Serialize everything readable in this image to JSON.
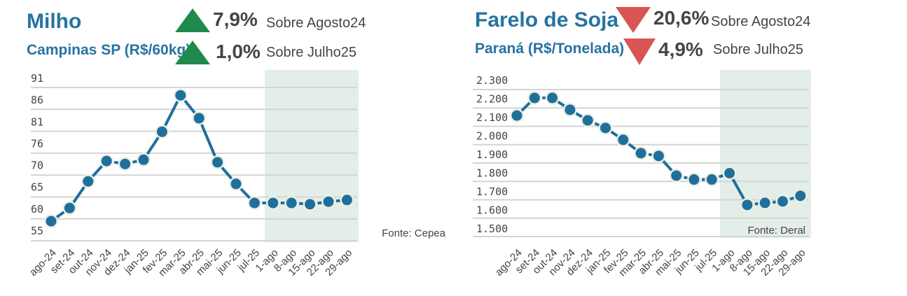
{
  "left_header": {
    "title": "Milho",
    "subtitle": "Campinas SP (R$/60kg)",
    "change_year": {
      "value": "7,9%",
      "label": "Sobre Agosto24",
      "direction": "up",
      "icon": "triangle-up-icon"
    },
    "change_month": {
      "value": "1,0%",
      "label": "Sobre Julho25",
      "direction": "up",
      "icon": "triangle-up-icon"
    }
  },
  "right_header": {
    "title": "Farelo de Soja",
    "subtitle": "Paraná (R$/Tonelada)",
    "change_year": {
      "value": "20,6%",
      "label": "Sobre Agosto24",
      "direction": "down",
      "icon": "triangle-down-icon"
    },
    "change_month": {
      "value": "4,9%",
      "label": "Sobre Julho25",
      "direction": "down",
      "icon": "triangle-down-icon"
    }
  },
  "colors": {
    "title": "#2674a1",
    "line": "#1f6f9c",
    "up": "#1e8a4c",
    "down": "#d95454",
    "highlight": "#e3eee8"
  },
  "chart_data": [
    {
      "type": "line",
      "title": "Milho",
      "source": "Fonte: Cepea",
      "categories": [
        "ago-24",
        "set-24",
        "out-24",
        "nov-24",
        "dez-24",
        "jan-25",
        "fev-25",
        "mar-25",
        "abr-25",
        "mai-25",
        "jun-25",
        "jul-25",
        "1-ago",
        "8-ago",
        "15-ago",
        "22-ago",
        "29-ago"
      ],
      "values": [
        57.3,
        60.4,
        66.7,
        71.5,
        70.8,
        71.8,
        78.4,
        87.0,
        81.6,
        71.2,
        66.1,
        61.6,
        61.6,
        61.6,
        61.3,
        61.9,
        62.3
      ],
      "y_ticks": [
        "91",
        "86",
        "81",
        "76",
        "70",
        "65",
        "60",
        "55"
      ],
      "ylim": [
        55,
        91
      ],
      "highlight_from": "1-ago",
      "grid": true
    },
    {
      "type": "line",
      "title": "Farelo de Soja",
      "source": "Fonte: Deral",
      "categories": [
        "ago-24",
        "set-24",
        "out-24",
        "nov-24",
        "dez-24",
        "jan-25",
        "fev-25",
        "mar-25",
        "abr-25",
        "mai-25",
        "jun-25",
        "jul-25",
        "1-ago",
        "8-ago",
        "15-ago",
        "22-ago",
        "29-ago"
      ],
      "values": [
        2111,
        2206,
        2206,
        2142,
        2085,
        2044,
        1980,
        1908,
        1893,
        1787,
        1766,
        1766,
        1800,
        1629,
        1640,
        1648,
        1678
      ],
      "y_ticks": [
        "2.300",
        "2.200",
        "2.100",
        "2.000",
        "1.900",
        "1.800",
        "1.700",
        "1.600",
        "1.500"
      ],
      "ylim": [
        1500,
        2300
      ],
      "highlight_from": "1-ago",
      "grid": true
    }
  ]
}
